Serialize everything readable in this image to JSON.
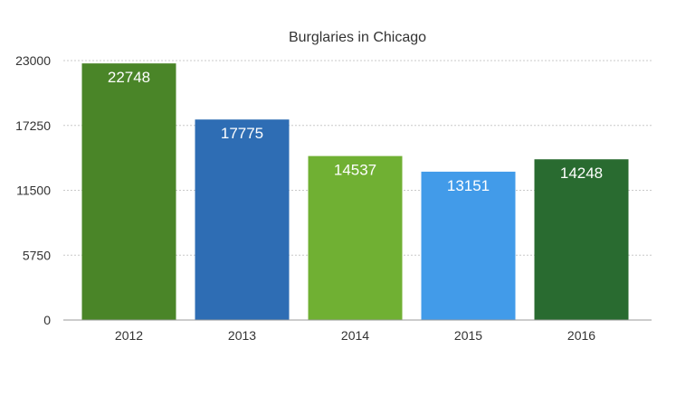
{
  "chart_data": {
    "type": "bar",
    "title": "Burglaries in Chicago",
    "xlabel": "",
    "ylabel": "",
    "categories": [
      "2012",
      "2013",
      "2014",
      "2015",
      "2016"
    ],
    "values": [
      22748,
      17775,
      14537,
      13151,
      14248
    ],
    "data_labels": [
      "22748",
      "17775",
      "14537",
      "13151",
      "14248"
    ],
    "bar_colors": [
      "#4a8528",
      "#2e6db4",
      "#70b033",
      "#429be9",
      "#296b30"
    ],
    "ylim": [
      0,
      23000
    ],
    "yticks": [
      0,
      5750,
      11500,
      17250,
      23000
    ],
    "ytick_labels": [
      "0",
      "5750",
      "11500",
      "17250",
      "23000"
    ],
    "grid": true,
    "legend": "none"
  }
}
